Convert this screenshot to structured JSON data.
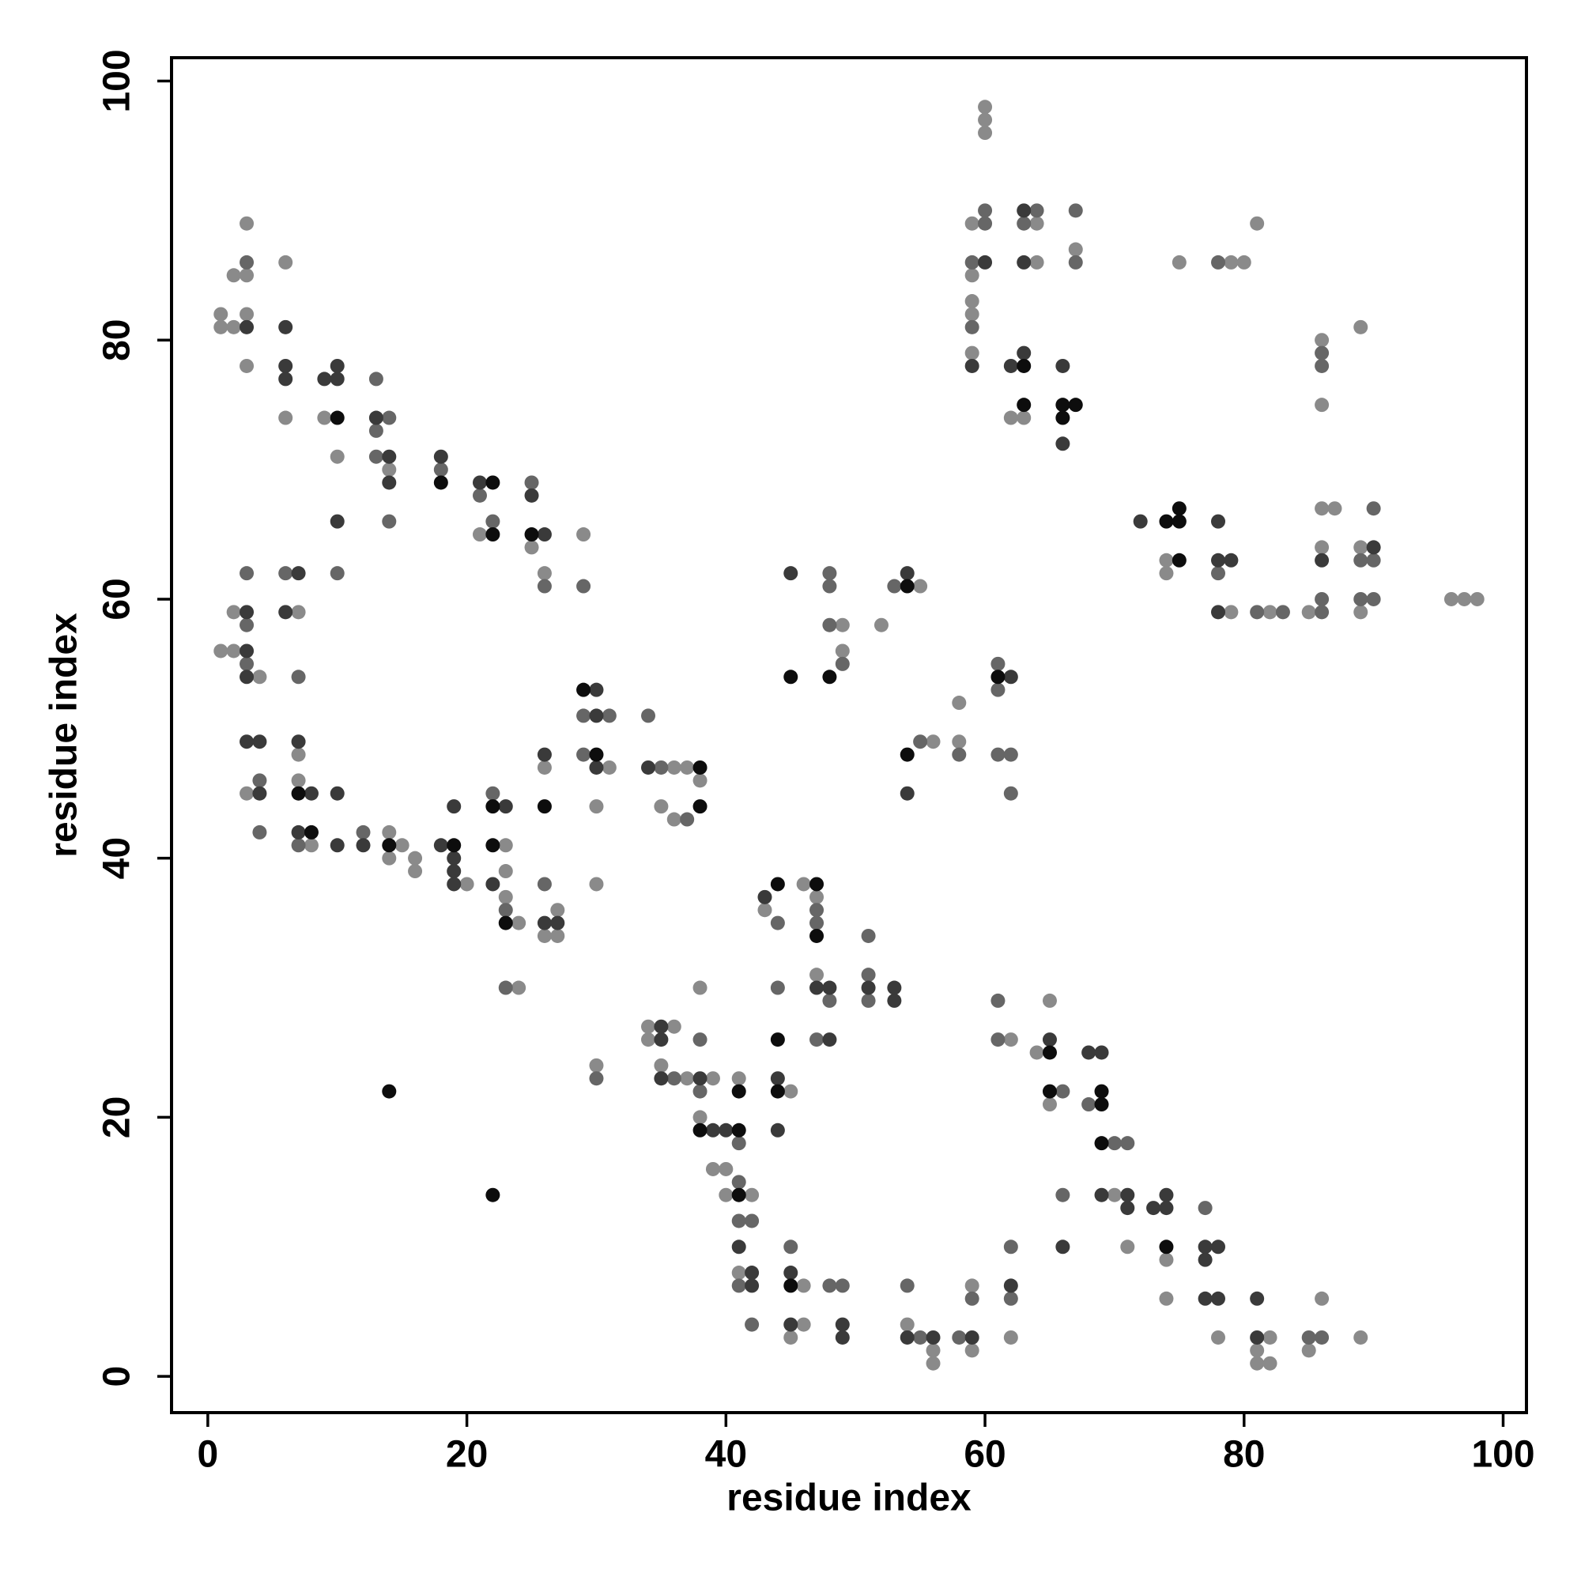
{
  "chart_data": {
    "type": "scatter",
    "x_label": "residue index",
    "y_label": "residue index",
    "xlim": [
      -2.8,
      101.8
    ],
    "ylim": [
      -2.8,
      101.8
    ],
    "xticks": [
      0,
      20,
      40,
      60,
      80,
      100
    ],
    "yticks": [
      0,
      20,
      40,
      60,
      80,
      100
    ],
    "series": [
      {
        "color": "#8a8a8a",
        "x": [
          1,
          1,
          2,
          2,
          3,
          3,
          3,
          3,
          6,
          6,
          9,
          10,
          14,
          21,
          25,
          26,
          29,
          1,
          2,
          2,
          3,
          4,
          7,
          7,
          7,
          8,
          14,
          14,
          15,
          16,
          16,
          20,
          23,
          23,
          23,
          24,
          24,
          26,
          26,
          27,
          27,
          30,
          30,
          30,
          31,
          35,
          36,
          36,
          37,
          38,
          49,
          49,
          52,
          55,
          56,
          58,
          58,
          60,
          60,
          60,
          59,
          59,
          59,
          59,
          59,
          64,
          64,
          67,
          62,
          63,
          75,
          79,
          80,
          81,
          86,
          86,
          89,
          74,
          74,
          79,
          82,
          85,
          86,
          87,
          86,
          89,
          89,
          96,
          97,
          98,
          34,
          34,
          36,
          35,
          37,
          38,
          38,
          39,
          39,
          40,
          40,
          41,
          41,
          42,
          43,
          45,
          46,
          47,
          47,
          45,
          46,
          46,
          54,
          56,
          56,
          59,
          59,
          62,
          62,
          64,
          65,
          65,
          70,
          71,
          74,
          74,
          78,
          81,
          81,
          82,
          82,
          85,
          86,
          89
        ],
        "values": [
          82,
          81,
          85,
          81,
          89,
          85,
          82,
          78,
          86,
          74,
          74,
          71,
          70,
          65,
          64,
          62,
          65,
          56,
          59,
          56,
          45,
          54,
          59,
          48,
          46,
          41,
          42,
          40,
          41,
          40,
          39,
          38,
          41,
          39,
          37,
          35,
          30,
          47,
          34,
          36,
          34,
          44,
          38,
          24,
          47,
          44,
          47,
          43,
          47,
          46,
          58,
          56,
          58,
          61,
          49,
          52,
          49,
          98,
          97,
          96,
          89,
          85,
          83,
          82,
          79,
          89,
          86,
          87,
          74,
          74,
          86,
          86,
          86,
          89,
          80,
          75,
          81,
          63,
          62,
          59,
          59,
          59,
          67,
          67,
          64,
          64,
          59,
          60,
          60,
          60,
          27,
          26,
          27,
          24,
          23,
          30,
          20,
          23,
          16,
          16,
          14,
          23,
          8,
          14,
          36,
          22,
          38,
          37,
          31,
          3,
          7,
          4,
          4,
          2,
          1,
          7,
          2,
          3,
          26,
          25,
          29,
          21,
          14,
          10,
          9,
          6,
          3,
          2,
          1,
          3,
          1,
          2,
          6,
          3
        ]
      },
      {
        "color": "#666666",
        "x": [
          3,
          10,
          13,
          13,
          13,
          14,
          14,
          18,
          21,
          22,
          25,
          26,
          29,
          3,
          3,
          3,
          4,
          4,
          6,
          7,
          7,
          12,
          22,
          23,
          23,
          26,
          29,
          29,
          30,
          31,
          34,
          35,
          37,
          48,
          48,
          48,
          49,
          53,
          55,
          58,
          61,
          61,
          61,
          62,
          62,
          60,
          60,
          59,
          59,
          63,
          64,
          67,
          67,
          78,
          86,
          86,
          78,
          81,
          83,
          86,
          86,
          89,
          90,
          90,
          89,
          90,
          36,
          38,
          38,
          41,
          41,
          41,
          41,
          42,
          42,
          44,
          44,
          47,
          47,
          47,
          48,
          51,
          51,
          51,
          45,
          48,
          49,
          54,
          55,
          58,
          59,
          62,
          62,
          61,
          61,
          66,
          66,
          68,
          70,
          71,
          77,
          85,
          86
        ],
        "values": [
          86,
          62,
          77,
          73,
          71,
          74,
          66,
          70,
          68,
          66,
          69,
          61,
          61,
          62,
          58,
          55,
          46,
          42,
          62,
          54,
          41,
          42,
          45,
          36,
          30,
          38,
          51,
          48,
          23,
          51,
          51,
          47,
          43,
          62,
          61,
          58,
          55,
          61,
          49,
          48,
          55,
          53,
          48,
          48,
          45,
          90,
          89,
          86,
          81,
          89,
          90,
          90,
          86,
          86,
          79,
          78,
          62,
          59,
          59,
          60,
          59,
          63,
          67,
          63,
          60,
          60,
          23,
          26,
          22,
          18,
          15,
          12,
          7,
          12,
          4,
          35,
          30,
          36,
          35,
          26,
          29,
          34,
          31,
          29,
          10,
          7,
          7,
          7,
          3,
          3,
          6,
          10,
          6,
          29,
          26,
          22,
          14,
          21,
          18,
          18,
          13,
          3,
          3
        ]
      },
      {
        "color": "#3a3a3a",
        "x": [
          3,
          6,
          6,
          6,
          9,
          10,
          10,
          10,
          13,
          14,
          14,
          18,
          21,
          25,
          26,
          3,
          3,
          3,
          3,
          4,
          4,
          6,
          7,
          7,
          7,
          8,
          10,
          10,
          12,
          18,
          19,
          19,
          19,
          19,
          22,
          23,
          26,
          26,
          27,
          30,
          30,
          30,
          34,
          45,
          54,
          54,
          62,
          60,
          59,
          63,
          63,
          62,
          63,
          66,
          66,
          72,
          78,
          78,
          79,
          78,
          86,
          90,
          35,
          35,
          35,
          38,
          39,
          40,
          41,
          42,
          42,
          43,
          44,
          44,
          47,
          48,
          48,
          51,
          53,
          53,
          45,
          45,
          49,
          49,
          54,
          56,
          59,
          62,
          65,
          66,
          68,
          69,
          69,
          71,
          71,
          73,
          74,
          74,
          77,
          77,
          77,
          78,
          78,
          81,
          81
        ],
        "values": [
          81,
          81,
          78,
          77,
          77,
          78,
          77,
          66,
          74,
          71,
          69,
          71,
          69,
          68,
          65,
          59,
          56,
          54,
          49,
          49,
          45,
          59,
          62,
          49,
          42,
          45,
          45,
          41,
          41,
          41,
          44,
          40,
          39,
          38,
          38,
          44,
          48,
          35,
          35,
          53,
          51,
          47,
          47,
          62,
          62,
          45,
          54,
          86,
          78,
          90,
          86,
          78,
          79,
          78,
          72,
          66,
          66,
          63,
          63,
          59,
          63,
          64,
          27,
          26,
          23,
          23,
          19,
          19,
          10,
          8,
          7,
          37,
          23,
          19,
          30,
          30,
          26,
          30,
          30,
          29,
          8,
          4,
          4,
          3,
          3,
          3,
          3,
          7,
          26,
          10,
          25,
          25,
          14,
          14,
          13,
          13,
          14,
          13,
          10,
          9,
          6,
          10,
          6,
          6,
          3
        ]
      },
      {
        "color": "#0d0d0d",
        "x": [
          10,
          18,
          22,
          22,
          25,
          7,
          8,
          14,
          19,
          22,
          22,
          23,
          26,
          29,
          30,
          38,
          38,
          14,
          22,
          45,
          48,
          54,
          54,
          61,
          63,
          63,
          66,
          66,
          67,
          74,
          75,
          75,
          75,
          38,
          41,
          41,
          41,
          44,
          44,
          44,
          47,
          47,
          45,
          65,
          65,
          69,
          69,
          69,
          74
        ],
        "values": [
          74,
          69,
          69,
          65,
          65,
          45,
          42,
          41,
          41,
          44,
          41,
          35,
          44,
          53,
          48,
          47,
          44,
          22,
          14,
          54,
          54,
          61,
          48,
          54,
          78,
          75,
          75,
          74,
          75,
          66,
          67,
          66,
          63,
          19,
          22,
          19,
          14,
          38,
          26,
          22,
          38,
          34,
          7,
          25,
          22,
          22,
          21,
          18,
          10
        ]
      }
    ]
  }
}
